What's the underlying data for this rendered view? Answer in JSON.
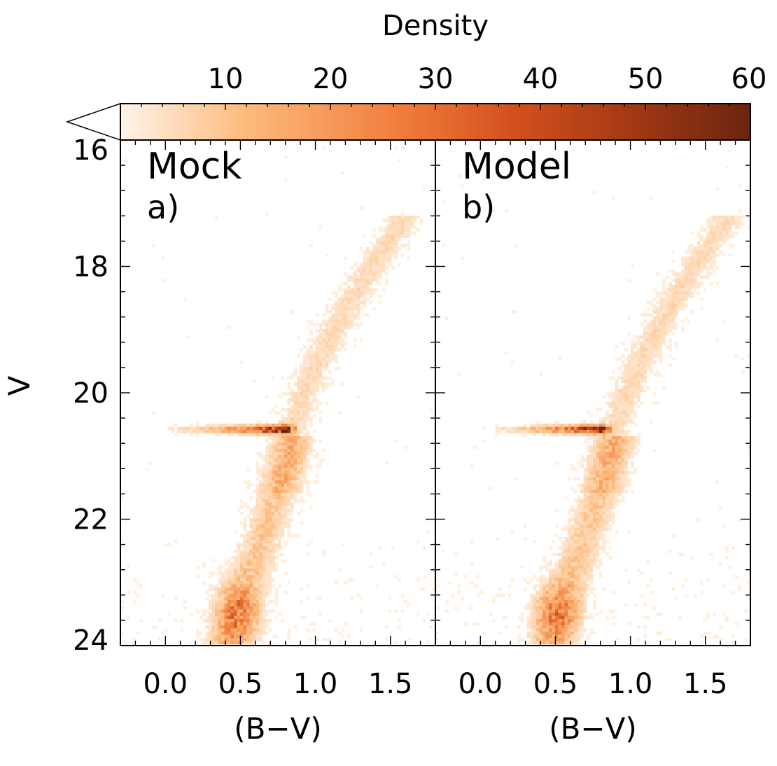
{
  "colorbar": {
    "label": "Density",
    "ticks": [
      10,
      20,
      30,
      40,
      50,
      60
    ],
    "range": [
      0,
      60
    ],
    "under_color": "#ffffff",
    "colormap": [
      "#fff4e8",
      "#fdba7d",
      "#f07b3a",
      "#d4511f",
      "#a63a14",
      "#6b2410"
    ]
  },
  "panels": [
    {
      "name": "Mock",
      "letter": "a)"
    },
    {
      "name": "Model",
      "letter": "b)"
    }
  ],
  "chart_data": {
    "type": "heatmap",
    "xlabel": "(B−V)",
    "ylabel": "V",
    "xlim": [
      -0.3,
      1.8
    ],
    "ylim": [
      24,
      16
    ],
    "xticks": [
      "0.0",
      "0.5",
      "1.0",
      "1.5"
    ],
    "yticks": [
      "16",
      "18",
      "20",
      "22",
      "24"
    ],
    "colorbar_label": "Density",
    "colorbar_ticks": [
      10,
      20,
      30,
      40,
      50,
      60
    ],
    "panels": [
      {
        "title": "Mock",
        "label": "a)",
        "features": [
          {
            "feature": "main sequence / turnoff",
            "color_BV": [
              0.35,
              0.65
            ],
            "V": [
              23.0,
              24.0
            ],
            "peak_density": 20
          },
          {
            "feature": "subgiant/red giant branch",
            "color_BV": [
              0.75,
              1.6
            ],
            "V": [
              17.3,
              21.5
            ],
            "peak_density": 6
          },
          {
            "feature": "horizontal branch",
            "color_BV": [
              0.0,
              0.8
            ],
            "V": [
              20.5,
              20.65
            ],
            "peak_density": 60
          }
        ]
      },
      {
        "title": "Model",
        "label": "b)",
        "features": [
          {
            "feature": "main sequence / turnoff",
            "color_BV": [
              0.35,
              0.7
            ],
            "V": [
              23.0,
              24.0
            ],
            "peak_density": 18
          },
          {
            "feature": "subgiant/red giant branch",
            "color_BV": [
              0.75,
              1.7
            ],
            "V": [
              17.3,
              21.5
            ],
            "peak_density": 6
          },
          {
            "feature": "horizontal branch",
            "color_BV": [
              0.1,
              0.85
            ],
            "V": [
              20.5,
              20.65
            ],
            "peak_density": 60
          }
        ]
      }
    ]
  }
}
